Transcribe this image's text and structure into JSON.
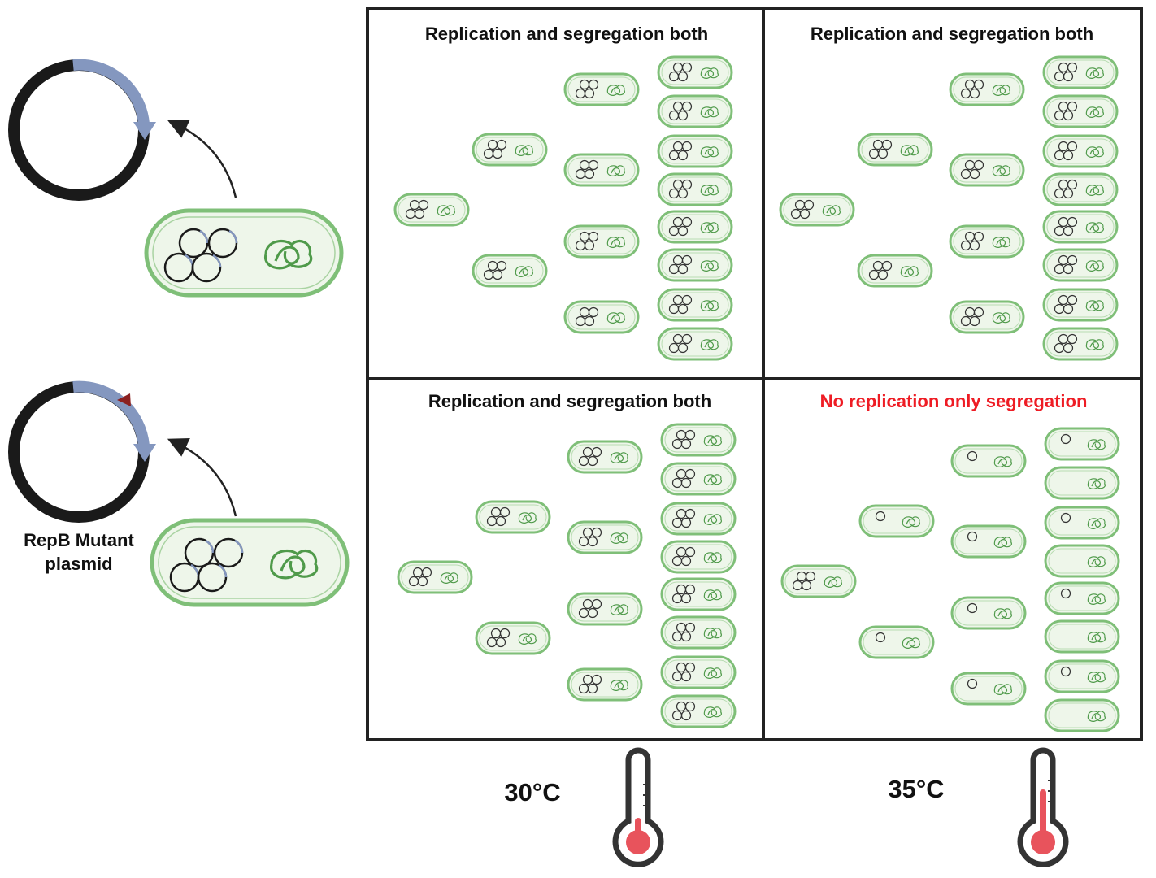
{
  "panels": [
    {
      "title": "Replication and segregation both",
      "title_color": "#111111"
    },
    {
      "title": "Replication and segregation both",
      "title_color": "#111111"
    },
    {
      "title": "Replication and segregation both",
      "title_color": "#111111"
    },
    {
      "title": "No replication only segregation",
      "title_color": "#ee1c24"
    }
  ],
  "temperatures": [
    "30°C",
    "35°C"
  ],
  "plasmid_label": [
    "RepB Mutant",
    "plasmid"
  ],
  "colors": {
    "cell_fill": "#eef6ea",
    "cell_border": "#7fbf78",
    "chromosome": "#4f9a4a",
    "plasmid_ring": "#1a1a1a",
    "plasmid_segment": "#8497bf",
    "mutation_marker": "#8b2020",
    "thermometer_fill": "#e8535c",
    "title_red": "#ee1c24"
  },
  "icons": [
    "plasmid-icon",
    "bacterium-icon",
    "thermometer-icon",
    "arrow-icon"
  ]
}
